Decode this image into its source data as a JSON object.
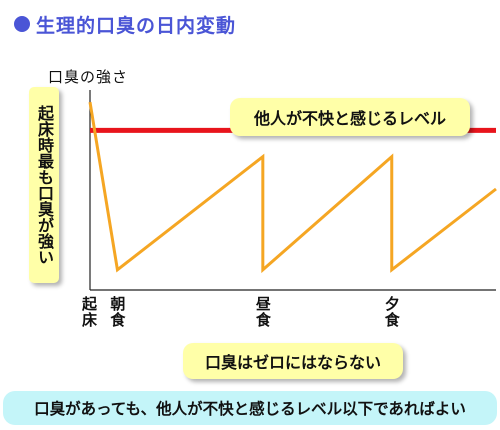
{
  "title": "生理的口臭の日内変動",
  "chart_data": {
    "type": "line",
    "title": "生理的口臭の日内変動",
    "ylabel": "口臭の強さ",
    "xlabel": "",
    "x_ticks": [
      "起床",
      "朝食",
      "昼食",
      "夕食"
    ],
    "series": [
      {
        "values": [
          {
            "x": 0,
            "y": 9.3
          },
          {
            "x": 1,
            "y": 1.0
          },
          {
            "x": 6.3,
            "y": 6.6
          },
          {
            "x": 6.3,
            "y": 1.0
          },
          {
            "x": 11.0,
            "y": 6.6
          },
          {
            "x": 11.0,
            "y": 1.0
          },
          {
            "x": 14.8,
            "y": 5.0
          }
        ],
        "color": "#f5a623"
      }
    ],
    "threshold": {
      "y": 7.9,
      "color": "#e8141c",
      "label": "他人が不快と感じるレベル"
    },
    "xlim": [
      0,
      14.8
    ],
    "ylim": [
      0,
      10
    ],
    "annotations": {
      "wake": "起床時最も口臭が強い",
      "threshold": "他人が不快と感じるレベル",
      "zero": "口臭はゼロにはならない",
      "summary": "口臭があっても、他人が不快と感じるレベル以下であればよい"
    },
    "grid": false,
    "axis_color": "#222222"
  }
}
